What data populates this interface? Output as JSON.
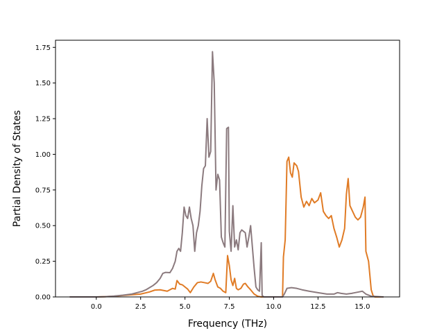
{
  "chart_data": {
    "type": "line",
    "title": "",
    "xlabel": "Frequency (THz)",
    "ylabel": "Partial Density of States",
    "xlim": [
      -2.3,
      17.1
    ],
    "ylim": [
      0.0,
      1.8
    ],
    "xticks": [
      0.0,
      2.5,
      5.0,
      7.5,
      10.0,
      12.5,
      15.0
    ],
    "xtick_labels": [
      "0.0",
      "2.5",
      "5.0",
      "7.5",
      "10.0",
      "12.5",
      "15.0"
    ],
    "yticks": [
      0.0,
      0.25,
      0.5,
      0.75,
      1.0,
      1.25,
      1.5,
      1.75
    ],
    "ytick_labels": [
      "0.00",
      "0.25",
      "0.50",
      "0.75",
      "1.00",
      "1.25",
      "1.50",
      "1.75"
    ],
    "grid": false,
    "series": [
      {
        "color": "#e07b25",
        "points": [
          [
            -1.5,
            0
          ],
          [
            0.0,
            0
          ],
          [
            0.5,
            0.002
          ],
          [
            1.0,
            0.005
          ],
          [
            1.5,
            0.01
          ],
          [
            2.0,
            0.015
          ],
          [
            2.5,
            0.02
          ],
          [
            3.0,
            0.035
          ],
          [
            3.3,
            0.048
          ],
          [
            3.6,
            0.05
          ],
          [
            4.0,
            0.04
          ],
          [
            4.3,
            0.06
          ],
          [
            4.45,
            0.055
          ],
          [
            4.55,
            0.115
          ],
          [
            4.7,
            0.09
          ],
          [
            4.85,
            0.085
          ],
          [
            5.0,
            0.07
          ],
          [
            5.15,
            0.055
          ],
          [
            5.3,
            0.03
          ],
          [
            5.5,
            0.07
          ],
          [
            5.7,
            0.1
          ],
          [
            5.9,
            0.105
          ],
          [
            6.1,
            0.1
          ],
          [
            6.3,
            0.095
          ],
          [
            6.45,
            0.11
          ],
          [
            6.6,
            0.165
          ],
          [
            6.7,
            0.12
          ],
          [
            6.85,
            0.07
          ],
          [
            7.0,
            0.06
          ],
          [
            7.15,
            0.04
          ],
          [
            7.3,
            0.03
          ],
          [
            7.4,
            0.29
          ],
          [
            7.5,
            0.22
          ],
          [
            7.6,
            0.12
          ],
          [
            7.7,
            0.08
          ],
          [
            7.8,
            0.13
          ],
          [
            7.9,
            0.06
          ],
          [
            8.0,
            0.05
          ],
          [
            8.15,
            0.06
          ],
          [
            8.3,
            0.09
          ],
          [
            8.4,
            0.095
          ],
          [
            8.55,
            0.07
          ],
          [
            8.7,
            0.05
          ],
          [
            8.9,
            0.02
          ],
          [
            9.1,
            0.005
          ],
          [
            9.3,
            0
          ],
          [
            10.5,
            0
          ],
          [
            10.55,
            0.28
          ],
          [
            10.65,
            0.4
          ],
          [
            10.75,
            0.95
          ],
          [
            10.85,
            0.98
          ],
          [
            10.95,
            0.87
          ],
          [
            11.05,
            0.84
          ],
          [
            11.15,
            0.94
          ],
          [
            11.3,
            0.92
          ],
          [
            11.4,
            0.88
          ],
          [
            11.55,
            0.7
          ],
          [
            11.7,
            0.63
          ],
          [
            11.85,
            0.67
          ],
          [
            12.0,
            0.64
          ],
          [
            12.15,
            0.69
          ],
          [
            12.3,
            0.66
          ],
          [
            12.5,
            0.68
          ],
          [
            12.65,
            0.73
          ],
          [
            12.8,
            0.6
          ],
          [
            12.95,
            0.57
          ],
          [
            13.1,
            0.55
          ],
          [
            13.25,
            0.57
          ],
          [
            13.4,
            0.48
          ],
          [
            13.55,
            0.42
          ],
          [
            13.7,
            0.35
          ],
          [
            13.85,
            0.4
          ],
          [
            14.0,
            0.48
          ],
          [
            14.1,
            0.72
          ],
          [
            14.2,
            0.83
          ],
          [
            14.3,
            0.64
          ],
          [
            14.45,
            0.6
          ],
          [
            14.6,
            0.56
          ],
          [
            14.75,
            0.54
          ],
          [
            14.9,
            0.56
          ],
          [
            15.05,
            0.63
          ],
          [
            15.15,
            0.7
          ],
          [
            15.2,
            0.32
          ],
          [
            15.35,
            0.25
          ],
          [
            15.5,
            0.05
          ],
          [
            15.6,
            0.01
          ],
          [
            15.7,
            0
          ],
          [
            16.2,
            0
          ]
        ]
      },
      {
        "color": "#8b7a7e",
        "points": [
          [
            -1.5,
            0
          ],
          [
            0.0,
            0
          ],
          [
            0.5,
            0.002
          ],
          [
            1.0,
            0.006
          ],
          [
            1.5,
            0.012
          ],
          [
            2.0,
            0.02
          ],
          [
            2.3,
            0.03
          ],
          [
            2.6,
            0.04
          ],
          [
            2.8,
            0.05
          ],
          [
            3.0,
            0.065
          ],
          [
            3.2,
            0.08
          ],
          [
            3.4,
            0.1
          ],
          [
            3.6,
            0.13
          ],
          [
            3.75,
            0.165
          ],
          [
            3.9,
            0.172
          ],
          [
            4.15,
            0.17
          ],
          [
            4.3,
            0.2
          ],
          [
            4.45,
            0.25
          ],
          [
            4.55,
            0.32
          ],
          [
            4.65,
            0.34
          ],
          [
            4.75,
            0.32
          ],
          [
            4.85,
            0.45
          ],
          [
            4.95,
            0.63
          ],
          [
            5.05,
            0.57
          ],
          [
            5.15,
            0.55
          ],
          [
            5.25,
            0.63
          ],
          [
            5.35,
            0.55
          ],
          [
            5.45,
            0.5
          ],
          [
            5.55,
            0.32
          ],
          [
            5.65,
            0.45
          ],
          [
            5.75,
            0.5
          ],
          [
            5.85,
            0.6
          ],
          [
            5.95,
            0.78
          ],
          [
            6.05,
            0.9
          ],
          [
            6.15,
            0.92
          ],
          [
            6.25,
            1.25
          ],
          [
            6.35,
            0.98
          ],
          [
            6.45,
            1.02
          ],
          [
            6.55,
            1.72
          ],
          [
            6.65,
            1.5
          ],
          [
            6.75,
            0.75
          ],
          [
            6.85,
            0.86
          ],
          [
            6.95,
            0.82
          ],
          [
            7.05,
            0.42
          ],
          [
            7.15,
            0.38
          ],
          [
            7.25,
            0.35
          ],
          [
            7.35,
            1.18
          ],
          [
            7.45,
            1.19
          ],
          [
            7.5,
            0.46
          ],
          [
            7.6,
            0.32
          ],
          [
            7.7,
            0.64
          ],
          [
            7.8,
            0.35
          ],
          [
            7.9,
            0.4
          ],
          [
            8.0,
            0.33
          ],
          [
            8.1,
            0.45
          ],
          [
            8.2,
            0.47
          ],
          [
            8.3,
            0.46
          ],
          [
            8.4,
            0.45
          ],
          [
            8.5,
            0.35
          ],
          [
            8.6,
            0.42
          ],
          [
            8.7,
            0.5
          ],
          [
            8.8,
            0.35
          ],
          [
            8.9,
            0.2
          ],
          [
            9.0,
            0.07
          ],
          [
            9.1,
            0.05
          ],
          [
            9.2,
            0.04
          ],
          [
            9.3,
            0.38
          ],
          [
            9.35,
            0.01
          ],
          [
            9.45,
            0
          ],
          [
            10.5,
            0
          ],
          [
            10.6,
            0.02
          ],
          [
            10.75,
            0.06
          ],
          [
            11.0,
            0.065
          ],
          [
            11.3,
            0.06
          ],
          [
            11.6,
            0.05
          ],
          [
            12.0,
            0.04
          ],
          [
            12.5,
            0.03
          ],
          [
            13.0,
            0.02
          ],
          [
            13.4,
            0.02
          ],
          [
            13.6,
            0.03
          ],
          [
            13.8,
            0.025
          ],
          [
            14.1,
            0.02
          ],
          [
            14.4,
            0.025
          ],
          [
            14.6,
            0.03
          ],
          [
            14.8,
            0.035
          ],
          [
            15.0,
            0.04
          ],
          [
            15.2,
            0.02
          ],
          [
            15.5,
            0.005
          ],
          [
            16.2,
            0
          ]
        ]
      }
    ]
  }
}
